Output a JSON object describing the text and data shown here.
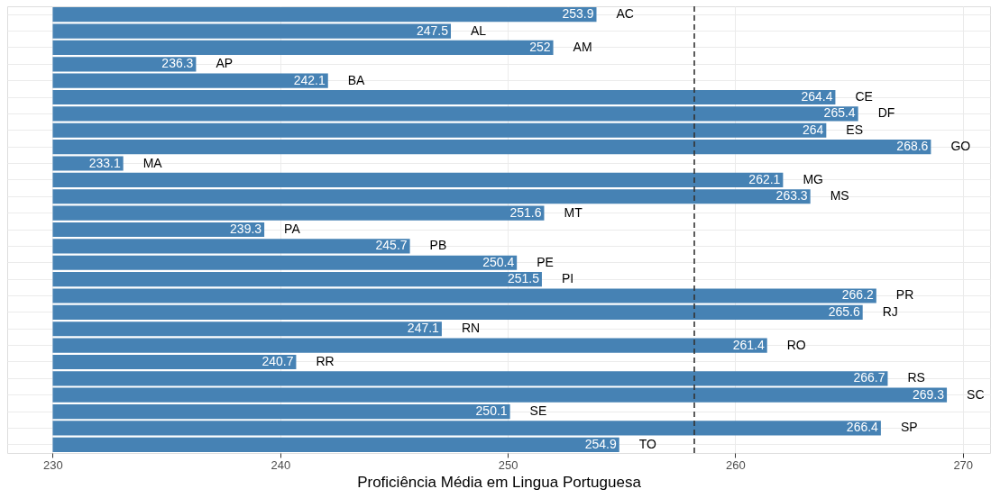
{
  "chart_data": {
    "type": "bar",
    "orientation": "horizontal",
    "xlabel": "Proficiência Média em Lingua Portuguesa",
    "categories": [
      "AC",
      "AL",
      "AM",
      "AP",
      "BA",
      "CE",
      "DF",
      "ES",
      "GO",
      "MA",
      "MG",
      "MS",
      "MT",
      "PA",
      "PB",
      "PE",
      "PI",
      "PR",
      "RJ",
      "RN",
      "RO",
      "RR",
      "RS",
      "SC",
      "SE",
      "SP",
      "TO"
    ],
    "base": [
      230,
      230,
      230,
      230,
      230,
      230,
      230,
      230,
      230,
      230,
      230,
      230,
      230,
      230,
      230,
      230,
      230,
      230,
      230,
      230,
      230,
      230,
      230,
      230,
      230,
      230,
      230
    ],
    "values": [
      23.9,
      17.5,
      22,
      6.3,
      12.1,
      34.4,
      35.4,
      34,
      38.6,
      3.1,
      32.1,
      33.3,
      21.6,
      9.3,
      15.7,
      20.4,
      21.5,
      36.2,
      35.6,
      17.1,
      31.4,
      10.7,
      36.7,
      39.3,
      20.1,
      36.4,
      24.9
    ],
    "value_labels": [
      "253.9",
      "247.5",
      "252",
      "236.3",
      "242.1",
      "264.4",
      "265.4",
      "264",
      "268.6",
      "233.1",
      "262.1",
      "263.3",
      "251.6",
      "239.3",
      "245.7",
      "250.4",
      "251.5",
      "266.2",
      "265.6",
      "247.1",
      "261.4",
      "240.7",
      "266.7",
      "269.3",
      "250.1",
      "266.4",
      "254.9"
    ],
    "color": "#4682b4",
    "xlim": [
      228,
      271.2
    ],
    "xticks": [
      230,
      240,
      250,
      260,
      270
    ],
    "ref_lines": [
      {
        "axis": "x",
        "value": 258.2,
        "line_style": "dashed",
        "color": "#333333"
      }
    ],
    "grid": true,
    "tick_labels": "x"
  }
}
